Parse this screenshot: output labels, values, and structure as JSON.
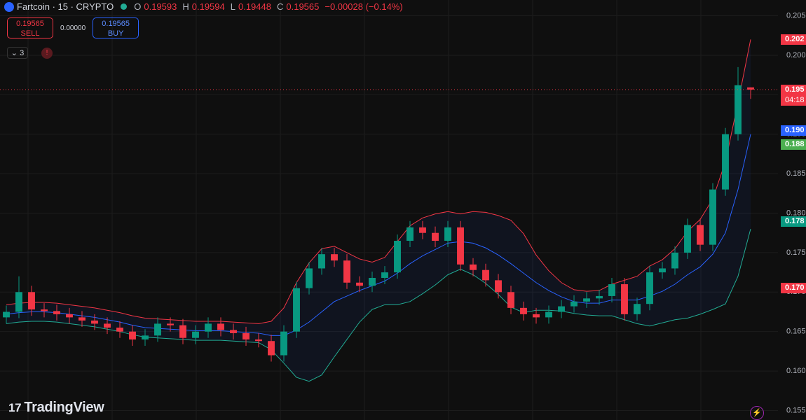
{
  "header": {
    "symbol": "Fartcoin · 15 · CRYPTO",
    "open_label": "O",
    "open": "0.19593",
    "high_label": "H",
    "high": "0.19594",
    "low_label": "L",
    "low": "0.19448",
    "close_label": "C",
    "close": "0.19565",
    "change": "−0.00028 (−0.14%)"
  },
  "trade": {
    "sell_price": "0.19565",
    "sell": "SELL",
    "spread": "0.00000",
    "buy_price": "0.19565",
    "buy": "BUY"
  },
  "indicators_count": "3",
  "logo": "TradingView",
  "price_badges": [
    {
      "text": "0.202"
    },
    {
      "text": "0.195",
      "sub": "04:18"
    },
    {
      "text": "0.190"
    },
    {
      "text": "0.188"
    },
    {
      "text": "0.178"
    },
    {
      "text": "0.170"
    }
  ],
  "chart_data": {
    "type": "candlestick",
    "open": [
      0.1668,
      0.1675,
      0.17,
      0.1678,
      0.1676,
      0.1672,
      0.1668,
      0.1664,
      0.166,
      0.1655,
      0.165,
      0.164,
      0.1645,
      0.166,
      0.1658,
      0.1642,
      0.165,
      0.166,
      0.1652,
      0.1648,
      0.164,
      0.1638,
      0.162,
      0.165,
      0.1705,
      0.173,
      0.1748,
      0.174,
      0.1712,
      0.1708,
      0.1718,
      0.1725,
      0.1765,
      0.1782,
      0.1775,
      0.1765,
      0.1782,
      0.1735,
      0.1728,
      0.1715,
      0.17,
      0.168,
      0.1672,
      0.1668,
      0.1675,
      0.1682,
      0.1688,
      0.1692,
      0.1695,
      0.171,
      0.1672,
      0.1685,
      0.1725,
      0.173,
      0.175,
      0.1785,
      0.176,
      0.183,
      0.19,
      0.19593
    ],
    "high": [
      0.1683,
      0.172,
      0.1708,
      0.1686,
      0.1684,
      0.168,
      0.1676,
      0.1672,
      0.1668,
      0.1663,
      0.1658,
      0.1653,
      0.1668,
      0.1668,
      0.1666,
      0.1658,
      0.1668,
      0.1668,
      0.166,
      0.1656,
      0.1648,
      0.1646,
      0.1658,
      0.1713,
      0.1738,
      0.1756,
      0.1756,
      0.1748,
      0.172,
      0.1726,
      0.1733,
      0.1773,
      0.179,
      0.179,
      0.1783,
      0.179,
      0.179,
      0.1743,
      0.1736,
      0.1723,
      0.1708,
      0.1688,
      0.168,
      0.1683,
      0.169,
      0.1696,
      0.17,
      0.1703,
      0.1718,
      0.1718,
      0.1693,
      0.1733,
      0.1738,
      0.1758,
      0.1793,
      0.1793,
      0.1838,
      0.1908,
      0.1985,
      0.19594
    ],
    "low": [
      0.166,
      0.1667,
      0.167,
      0.1668,
      0.1664,
      0.166,
      0.1656,
      0.1652,
      0.1647,
      0.1642,
      0.1632,
      0.1632,
      0.1637,
      0.165,
      0.1634,
      0.1634,
      0.1642,
      0.1644,
      0.164,
      0.1632,
      0.163,
      0.1612,
      0.1612,
      0.1642,
      0.1697,
      0.1722,
      0.1732,
      0.1704,
      0.17,
      0.17,
      0.171,
      0.1717,
      0.1757,
      0.1767,
      0.1757,
      0.1757,
      0.1727,
      0.172,
      0.1707,
      0.1692,
      0.1672,
      0.1664,
      0.166,
      0.166,
      0.1667,
      0.1674,
      0.168,
      0.1684,
      0.1687,
      0.1664,
      0.1664,
      0.1677,
      0.1717,
      0.1722,
      0.1742,
      0.1752,
      0.1752,
      0.1822,
      0.1892,
      0.19448
    ],
    "close": [
      0.1675,
      0.17,
      0.1678,
      0.1676,
      0.1672,
      0.1668,
      0.1664,
      0.166,
      0.1655,
      0.165,
      0.164,
      0.1645,
      0.166,
      0.1658,
      0.1642,
      0.165,
      0.166,
      0.1652,
      0.1648,
      0.164,
      0.1638,
      0.162,
      0.165,
      0.1705,
      0.173,
      0.1748,
      0.174,
      0.1712,
      0.1708,
      0.1718,
      0.1725,
      0.1765,
      0.1782,
      0.1775,
      0.1765,
      0.1782,
      0.1735,
      0.1728,
      0.1715,
      0.17,
      0.168,
      0.1672,
      0.1668,
      0.1675,
      0.1682,
      0.1688,
      0.1692,
      0.1695,
      0.171,
      0.1672,
      0.1685,
      0.1725,
      0.173,
      0.175,
      0.1785,
      0.176,
      0.183,
      0.19,
      0.1962,
      0.19565
    ],
    "up_color": "#089981",
    "down_color": "#f23645",
    "bands": {
      "upper": [
        0.1684,
        0.1686,
        0.1687,
        0.1687,
        0.1686,
        0.1684,
        0.1682,
        0.168,
        0.1677,
        0.1674,
        0.167,
        0.1667,
        0.1666,
        0.1665,
        0.1664,
        0.1663,
        0.1663,
        0.1663,
        0.1662,
        0.1661,
        0.166,
        0.1663,
        0.168,
        0.1712,
        0.1737,
        0.1755,
        0.1758,
        0.175,
        0.1742,
        0.1738,
        0.1744,
        0.1764,
        0.1784,
        0.1794,
        0.1799,
        0.1802,
        0.1799,
        0.1802,
        0.1801,
        0.1797,
        0.1791,
        0.1774,
        0.1747,
        0.1727,
        0.1712,
        0.1703,
        0.1701,
        0.1702,
        0.171,
        0.1715,
        0.172,
        0.1733,
        0.1741,
        0.1755,
        0.1777,
        0.1792,
        0.1818,
        0.1865,
        0.194,
        0.202
      ],
      "middle": [
        0.1672,
        0.1674,
        0.1675,
        0.1675,
        0.1674,
        0.1672,
        0.167,
        0.1668,
        0.1665,
        0.1662,
        0.1658,
        0.1655,
        0.1654,
        0.1653,
        0.1652,
        0.1651,
        0.1651,
        0.1651,
        0.165,
        0.1649,
        0.1648,
        0.1645,
        0.1645,
        0.1652,
        0.1662,
        0.1675,
        0.1688,
        0.1695,
        0.1702,
        0.1708,
        0.1714,
        0.1724,
        0.1736,
        0.1746,
        0.1754,
        0.1762,
        0.1764,
        0.1762,
        0.1756,
        0.1747,
        0.1736,
        0.1724,
        0.1712,
        0.1702,
        0.1694,
        0.1688,
        0.1686,
        0.1686,
        0.169,
        0.169,
        0.169,
        0.1695,
        0.1701,
        0.171,
        0.1722,
        0.1732,
        0.1748,
        0.1775,
        0.183,
        0.19
      ],
      "lower": [
        0.166,
        0.1662,
        0.1663,
        0.1663,
        0.1662,
        0.166,
        0.1658,
        0.1656,
        0.1653,
        0.165,
        0.1646,
        0.1643,
        0.1642,
        0.1641,
        0.164,
        0.1639,
        0.1639,
        0.1639,
        0.1638,
        0.1637,
        0.1636,
        0.1627,
        0.161,
        0.1592,
        0.1587,
        0.1595,
        0.1618,
        0.164,
        0.1662,
        0.1678,
        0.1684,
        0.1684,
        0.1688,
        0.1698,
        0.1709,
        0.1722,
        0.1729,
        0.1722,
        0.1711,
        0.1697,
        0.1681,
        0.1674,
        0.1677,
        0.1677,
        0.1676,
        0.1673,
        0.1671,
        0.167,
        0.167,
        0.1665,
        0.166,
        0.1657,
        0.1661,
        0.1665,
        0.1667,
        0.1672,
        0.1678,
        0.1685,
        0.172,
        0.178
      ],
      "upper_color": "#f23645",
      "middle_color": "#2962ff",
      "lower_color": "#22ab94"
    },
    "ylim": [
      0.1538,
      0.207
    ],
    "yticks": [
      0.205,
      {
        "value": 0.2,
        "label": "0.200"
      },
      0.195,
      {
        "value": 0.19,
        "label": "0.190"
      },
      0.185,
      {
        "value": 0.18,
        "label": "0.180"
      },
      0.175,
      {
        "value": 0.17,
        "label": "0.170"
      },
      0.165,
      {
        "value": 0.16,
        "label": "0.160"
      },
      0.155
    ],
    "grid": true
  }
}
